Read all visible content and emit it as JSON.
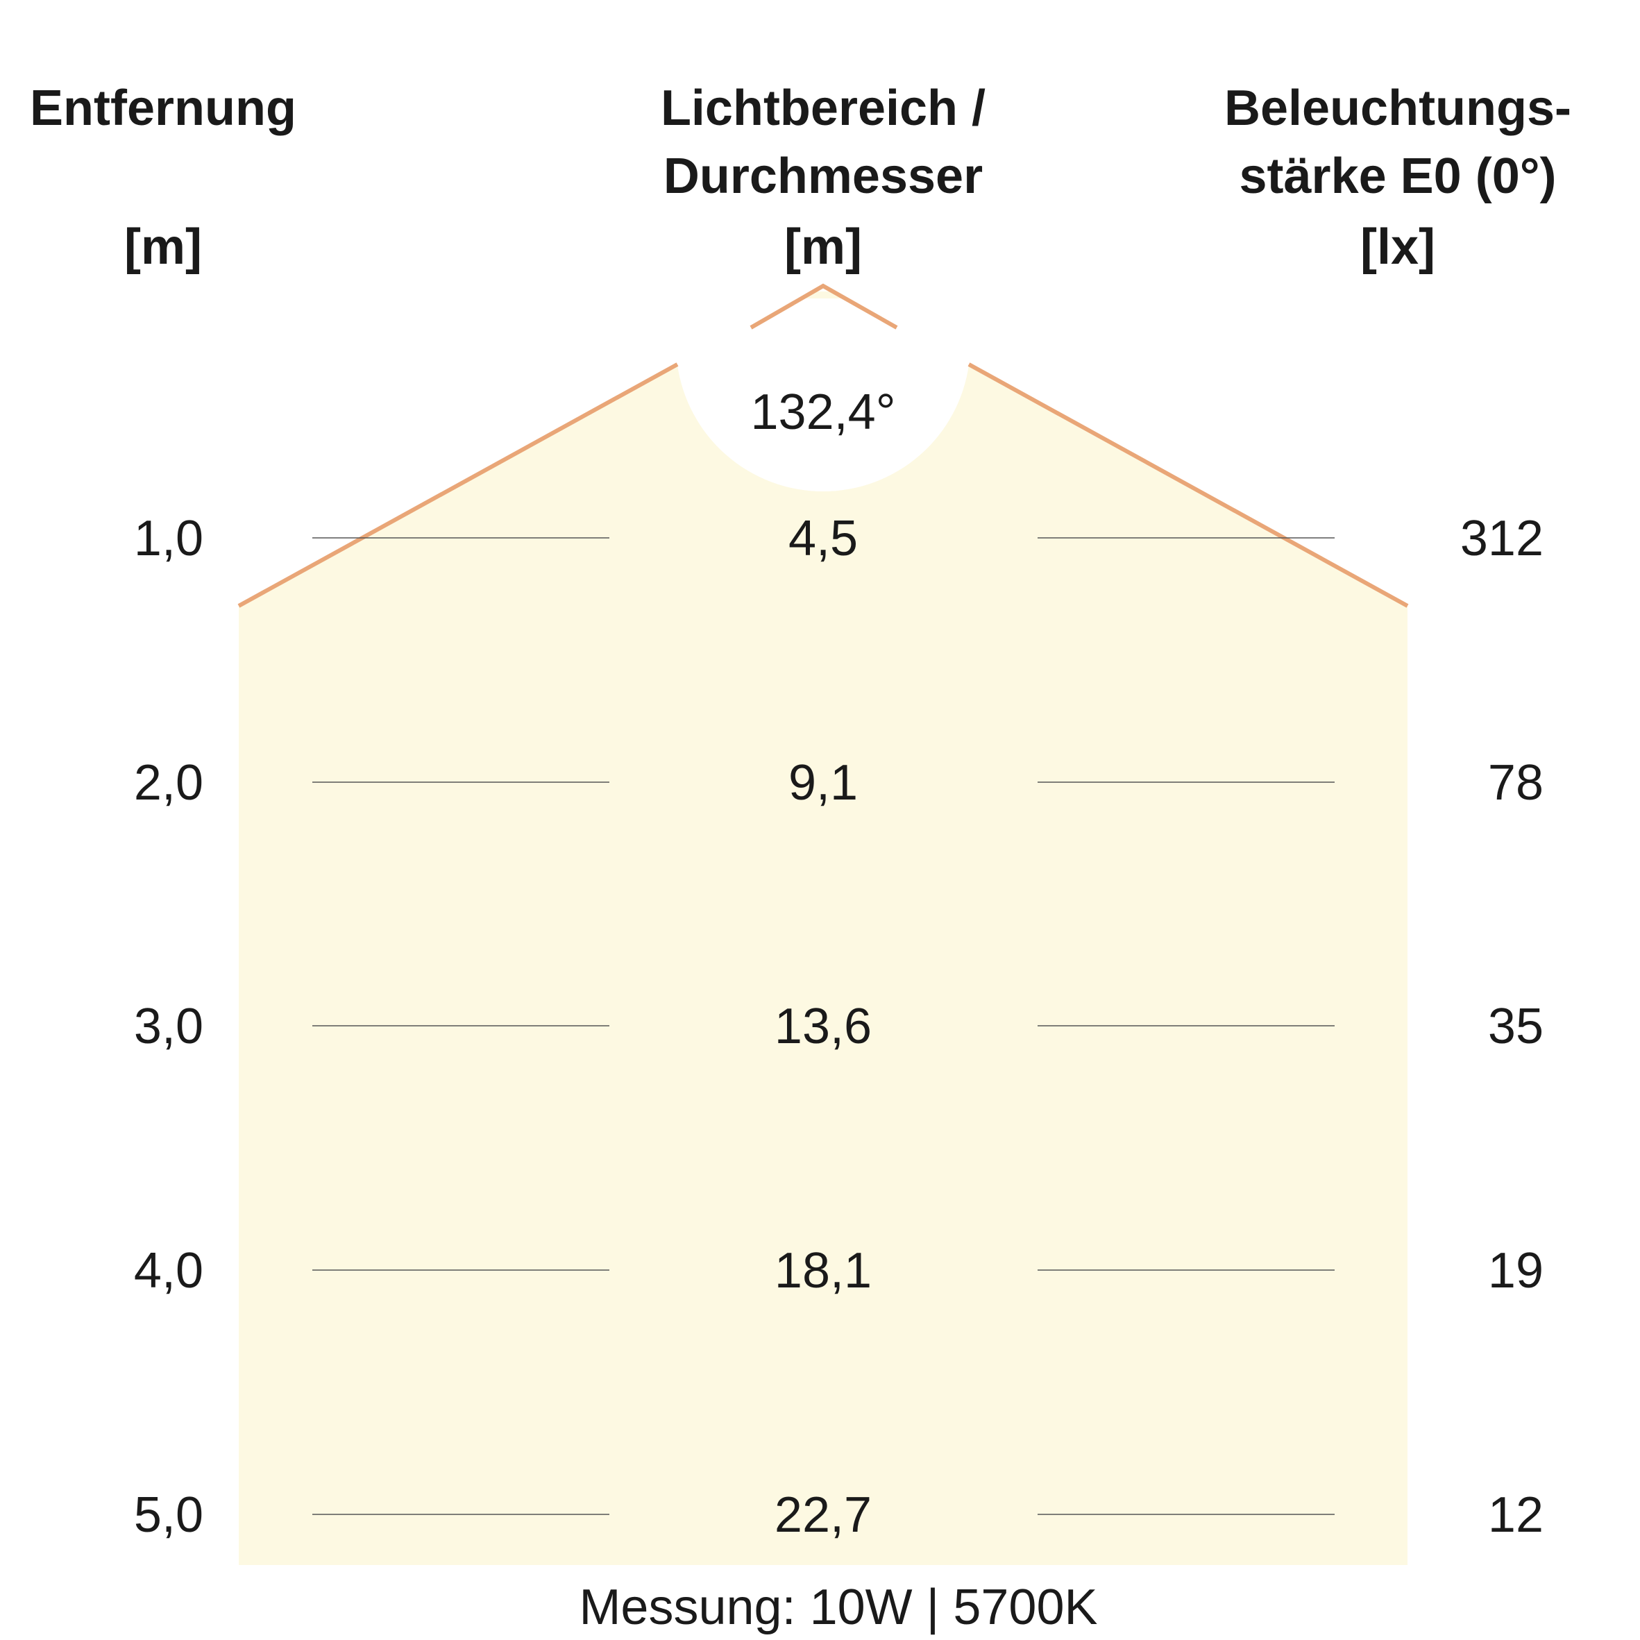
{
  "headers": {
    "distance": {
      "line1": "Entfernung",
      "unit": "[m]"
    },
    "diameter": {
      "line1": "Lichtbereich /",
      "line2": "Durchmesser",
      "unit": "[m]"
    },
    "illuminance": {
      "line1": "Beleuchtungs-",
      "line2": "stärke E0 (0°)",
      "unit": "[lx]"
    }
  },
  "beam_angle": "132,4°",
  "rows": [
    {
      "distance": "1,0",
      "diameter": "4,5",
      "illuminance": "312"
    },
    {
      "distance": "2,0",
      "diameter": "9,1",
      "illuminance": "78"
    },
    {
      "distance": "3,0",
      "diameter": "13,6",
      "illuminance": "35"
    },
    {
      "distance": "4,0",
      "diameter": "18,1",
      "illuminance": "19"
    },
    {
      "distance": "5,0",
      "diameter": "22,7",
      "illuminance": "12"
    }
  ],
  "footer": "Messung: 10W | 5700K",
  "colors": {
    "light_fill": "#fdf9e2",
    "beam_edge": "#e9a677",
    "text": "#1a1a1a"
  }
}
